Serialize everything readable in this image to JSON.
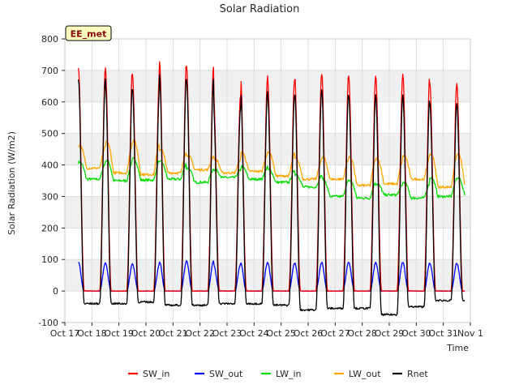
{
  "chart_data": {
    "type": "line",
    "title": "Solar Radiation",
    "xlabel": "Time",
    "ylabel": "Solar Radiation (W/m2)",
    "site_label": "EE_met",
    "ylim": [
      -100,
      800
    ],
    "yticks": [
      -100,
      0,
      100,
      200,
      300,
      400,
      500,
      600,
      700,
      800
    ],
    "xlim": [
      0,
      15
    ],
    "xticks": [
      "Oct 17",
      "Oct 18",
      "Oct 19",
      "Oct 20",
      "Oct 21",
      "Oct 22",
      "Oct 23",
      "Oct 24",
      "Oct 25",
      "Oct 26",
      "Oct 27",
      "Oct 28",
      "Oct 29",
      "Oct 30",
      "Oct 31",
      "Nov 1"
    ],
    "grid": true,
    "legend_position": "bottom",
    "data_start_day": 0.5,
    "data_end_day": 14.8,
    "series": [
      {
        "name": "SW_in",
        "color": "#ff0000",
        "daily_peaks": [
          710,
          700,
          688,
          730,
          712,
          620,
          680,
          670,
          688,
          695,
          683,
          682,
          688,
          660
        ],
        "night_value": 0
      },
      {
        "name": "SW_out",
        "color": "#0000ff",
        "daily_peaks": [
          90,
          87,
          85,
          93,
          95,
          85,
          90,
          88,
          90,
          92,
          90,
          90,
          90,
          88
        ],
        "night_value": 0
      },
      {
        "name": "LW_in",
        "color": "#00dd00",
        "daily_values": [
          355,
          350,
          352,
          355,
          345,
          360,
          355,
          345,
          330,
          300,
          295,
          305,
          295,
          300
        ],
        "daily_peaks": [
          410,
          415,
          420,
          410,
          390,
          385,
          395,
          385,
          370,
          355,
          350,
          340,
          345,
          360
        ]
      },
      {
        "name": "LW_out",
        "color": "#ffa500",
        "daily_values": [
          390,
          375,
          370,
          375,
          385,
          375,
          380,
          365,
          355,
          355,
          335,
          340,
          355,
          330
        ],
        "daily_peaks": [
          462,
          475,
          478,
          450,
          430,
          420,
          440,
          440,
          420,
          425,
          425,
          420,
          430,
          435
        ]
      },
      {
        "name": "Rnet",
        "color": "#000000",
        "daily_peaks": [
          672,
          655,
          640,
          685,
          670,
          580,
          635,
          620,
          640,
          640,
          620,
          620,
          620,
          595
        ],
        "night_values": [
          -40,
          -40,
          -35,
          -45,
          -45,
          -40,
          -40,
          -45,
          -60,
          -55,
          -55,
          -75,
          -50,
          -30
        ]
      }
    ]
  }
}
